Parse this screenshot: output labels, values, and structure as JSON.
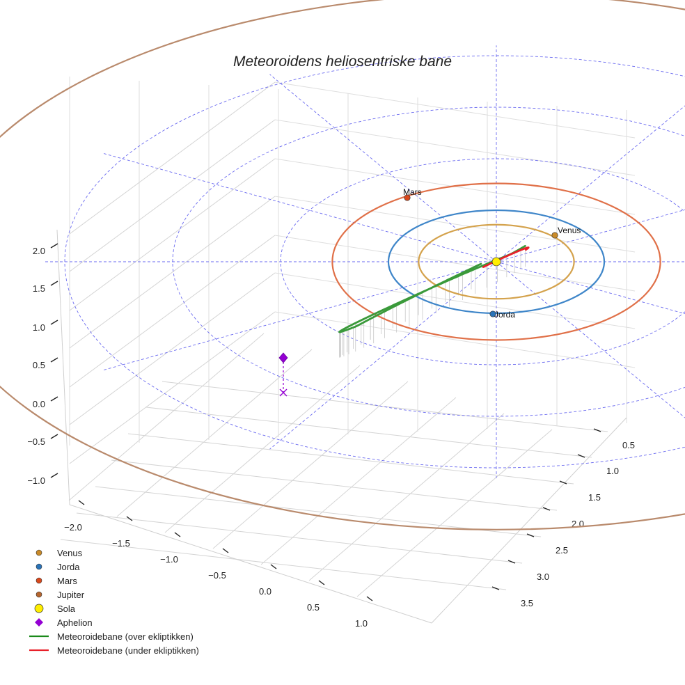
{
  "chart_data": {
    "type": "scatter",
    "title": "Meteoroidens heliosentriske bane",
    "projection": "3d",
    "xlabel": "",
    "ylabel": "",
    "zlabel": "",
    "x_ticks": [
      "0.5",
      "1.0",
      "1.5",
      "2.0",
      "2.5",
      "3.0",
      "3.5"
    ],
    "y_ticks": [
      "−2.0",
      "−1.5",
      "−1.0",
      "−0.5",
      "0.0",
      "0.5",
      "1.0"
    ],
    "z_ticks": [
      "−1.0",
      "−0.5",
      "0.0",
      "0.5",
      "1.0",
      "1.5",
      "2.0"
    ],
    "grid": true,
    "ecliptic_grid": {
      "circles_au": [
        1,
        2,
        3,
        4
      ],
      "radial_lines": 12,
      "color": "#6a6af0"
    },
    "planets": [
      {
        "name": "Venus",
        "label": "Venus",
        "orbit_radius_au": 0.72,
        "color": "#d4a24c",
        "marker_color": "#c98a28"
      },
      {
        "name": "Jorda",
        "label": "Jorda",
        "orbit_radius_au": 1.0,
        "color": "#3f86c9",
        "marker_color": "#2a73b8"
      },
      {
        "name": "Mars",
        "label": "Mars",
        "orbit_radius_au": 1.52,
        "color": "#e07048",
        "marker_color": "#d9481c"
      },
      {
        "name": "Jupiter",
        "label": "",
        "orbit_radius_au": 5.2,
        "color": "#b98a6c",
        "marker_color": "#b5652e"
      }
    ],
    "sun": {
      "name": "Sola",
      "color": "#ffee00"
    },
    "meteoroid_orbit": {
      "approx_aphelion_au": 2.45,
      "approx_perihelion_au": 0.02,
      "max_height_above_ecliptic_au": 0.35,
      "above_color": "#3a9a3a",
      "below_color": "#e8202a"
    },
    "aphelion": {
      "name": "Aphelion",
      "color": "#9400d3"
    },
    "legend": {
      "placement": "bottom-left",
      "entries": [
        {
          "label": "Venus",
          "marker": "dot",
          "color": "#c98a28"
        },
        {
          "label": "Jorda",
          "marker": "dot",
          "color": "#2a73b8"
        },
        {
          "label": "Mars",
          "marker": "dot",
          "color": "#d9481c"
        },
        {
          "label": "Jupiter",
          "marker": "dot",
          "color": "#b5652e"
        },
        {
          "label": "Sola",
          "marker": "sun",
          "color": "#ffee00"
        },
        {
          "label": "Aphelion",
          "marker": "diamond",
          "color": "#9400d3"
        },
        {
          "label": "Meteoroidebane (over ekliptikken)",
          "marker": "line",
          "color": "#1a8a1a"
        },
        {
          "label": "Meteoroidebane (under ekliptikken)",
          "marker": "line",
          "color": "#e8202a"
        }
      ]
    }
  }
}
